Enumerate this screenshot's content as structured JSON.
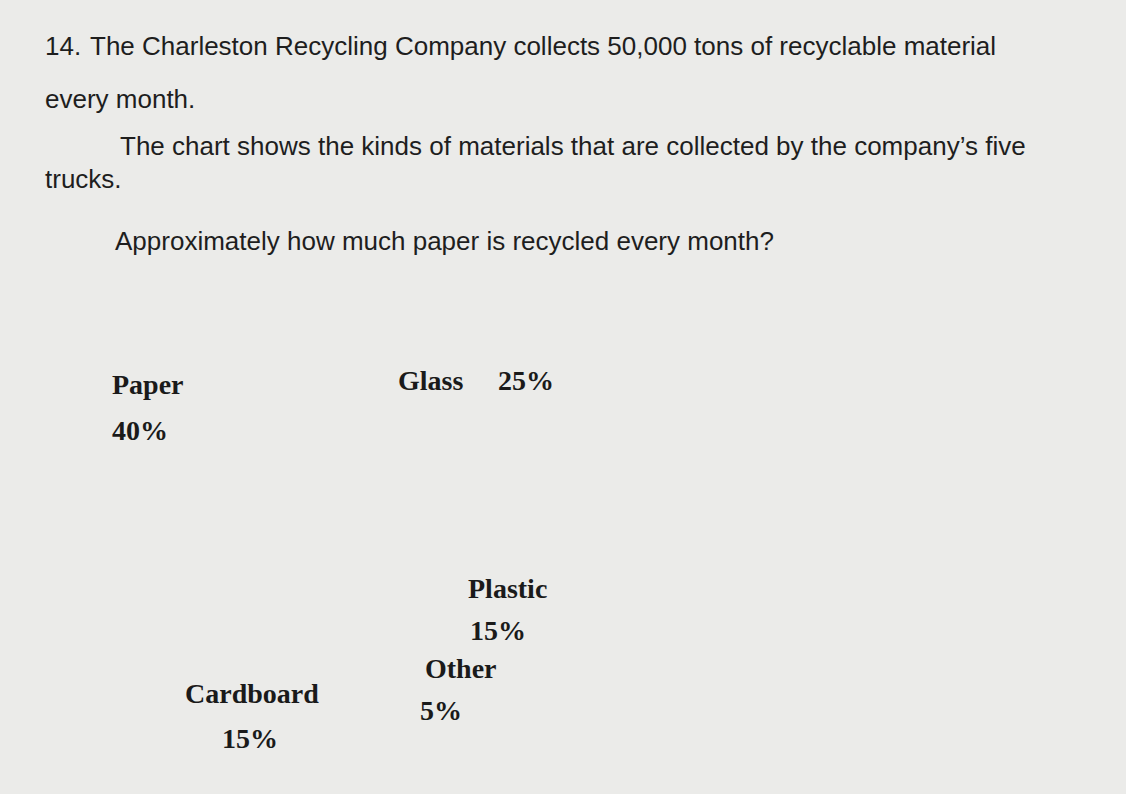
{
  "question": {
    "number": "14.",
    "lines": [
      "The Charleston Recycling Company collects 50,000 tons of recyclable material",
      "every month.",
      "The chart shows the kinds of materials that are collected by the company’s five",
      "trucks.",
      "Approximately how much paper is recycled every month?"
    ]
  },
  "chart_data": {
    "type": "pie",
    "categories": [
      "Glass",
      "Plastic",
      "Other",
      "Cardboard",
      "Paper"
    ],
    "values": [
      25,
      15,
      5,
      15,
      40
    ],
    "value_labels": [
      "25%",
      "15%",
      "5%",
      "15%",
      "40%"
    ],
    "color": "#ffffff",
    "data_labels": true
  }
}
